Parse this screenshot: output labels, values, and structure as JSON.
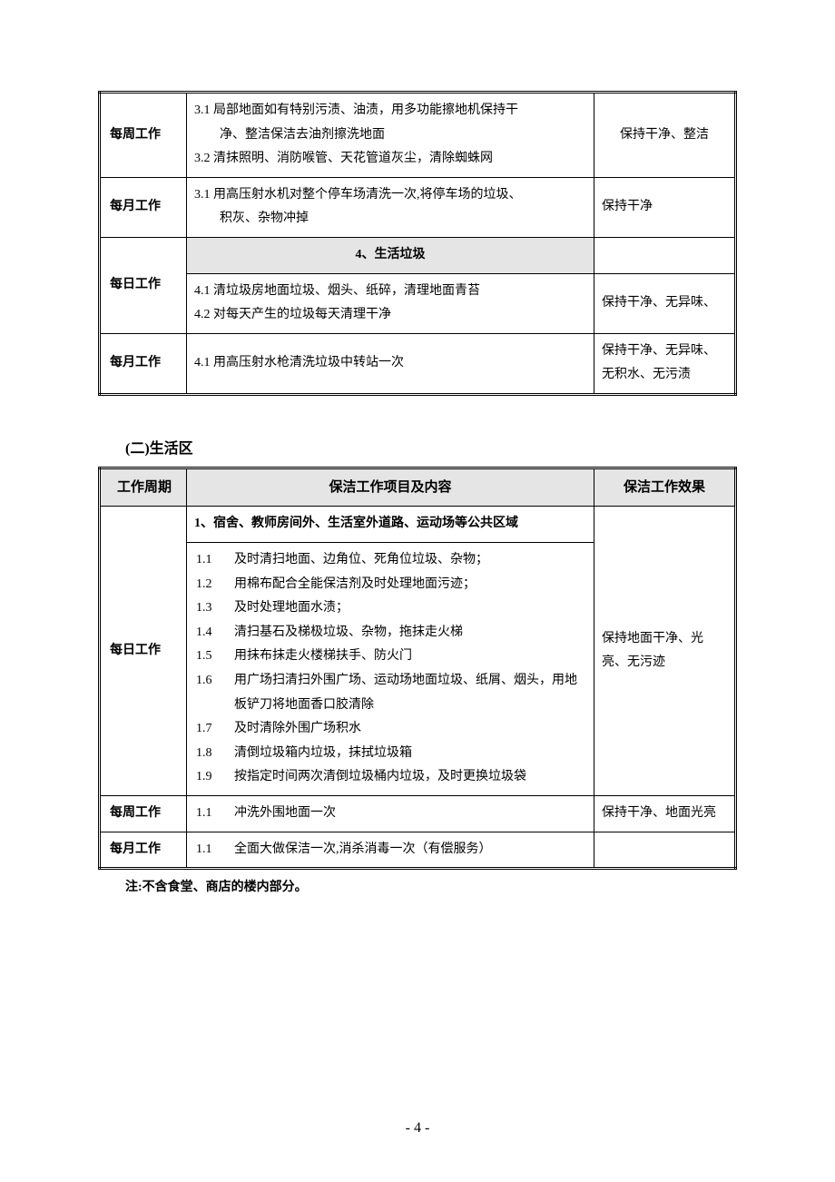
{
  "table1": {
    "rows": [
      {
        "period": "每周工作",
        "content": "3.1 局部地面如有特别污渍、油渍，用多功能擦地机保持干\n　　净、整洁保洁去油剂擦洗地面\n3.2 清抹照明、消防喉管、天花管道灰尘，清除蜘蛛网",
        "result": "保持干净、整洁"
      },
      {
        "period": "每月工作",
        "content": "3.1 用高压射水机对整个停车场清洗一次,将停车场的垃圾、\n　　积灰、杂物冲掉",
        "result": "保持干净"
      }
    ],
    "section4": {
      "header": "4、生活垃圾",
      "period_row1": "每日工作",
      "content_row1": "4.1 清垃圾房地面垃圾、烟头、纸碎，清理地面青苔\n4.2 对每天产生的垃圾每天清理干净",
      "result_row1": "保持干净、无异味、",
      "period_row2": "每月工作",
      "content_row2": "4.1 用高压射水枪清洗垃圾中转站一次",
      "result_row2": "保持干净、无异味、无积水、无污渍"
    }
  },
  "section_living": "(二)生活区",
  "table2": {
    "header": {
      "col1": "工作周期",
      "col2": "保洁工作项目及内容",
      "col3": "保洁工作效果"
    },
    "section1_header": "1、宿舍、教师房间外、生活室外道路、运动场等公共区域",
    "daily": {
      "period": "每日工作",
      "items": [
        {
          "num": "1.1",
          "txt": "及时清扫地面、边角位、死角位垃圾、杂物；"
        },
        {
          "num": "1.2",
          "txt": "用棉布配合全能保洁剂及时处理地面污迹；"
        },
        {
          "num": "1.3",
          "txt": "及时处理地面水渍；"
        },
        {
          "num": "1.4",
          "txt": "清扫基石及梯极垃圾、杂物，拖抹走火梯"
        },
        {
          "num": "1.5",
          "txt": "用抹布抹走火楼梯扶手、防火门"
        },
        {
          "num": "1.6",
          "txt": "用广场扫清扫外围广场、运动场地面垃圾、纸屑、烟头，用地板铲刀将地面香口胶清除"
        },
        {
          "num": "1.7",
          "txt": "及时清除外围广场积水"
        },
        {
          "num": "1.8",
          "txt": "清倒垃圾箱内垃圾，抹拭垃圾箱"
        },
        {
          "num": "1.9",
          "txt": "按指定时间两次清倒垃圾桶内垃圾，及时更换垃圾袋"
        }
      ],
      "result": "保持地面干净、光亮、无污迹"
    },
    "weekly": {
      "period": "每周工作",
      "items": [
        {
          "num": "1.1",
          "txt": "冲洗外围地面一次"
        }
      ],
      "result": "保持干净、地面光亮"
    },
    "monthly": {
      "period": "每月工作",
      "items": [
        {
          "num": "1.1",
          "txt": "全面大做保洁一次,消杀消毒一次（有偿服务）"
        }
      ],
      "result": ""
    }
  },
  "note": "注:不含食堂、商店的楼内部分。",
  "page_number": "- 4 -"
}
